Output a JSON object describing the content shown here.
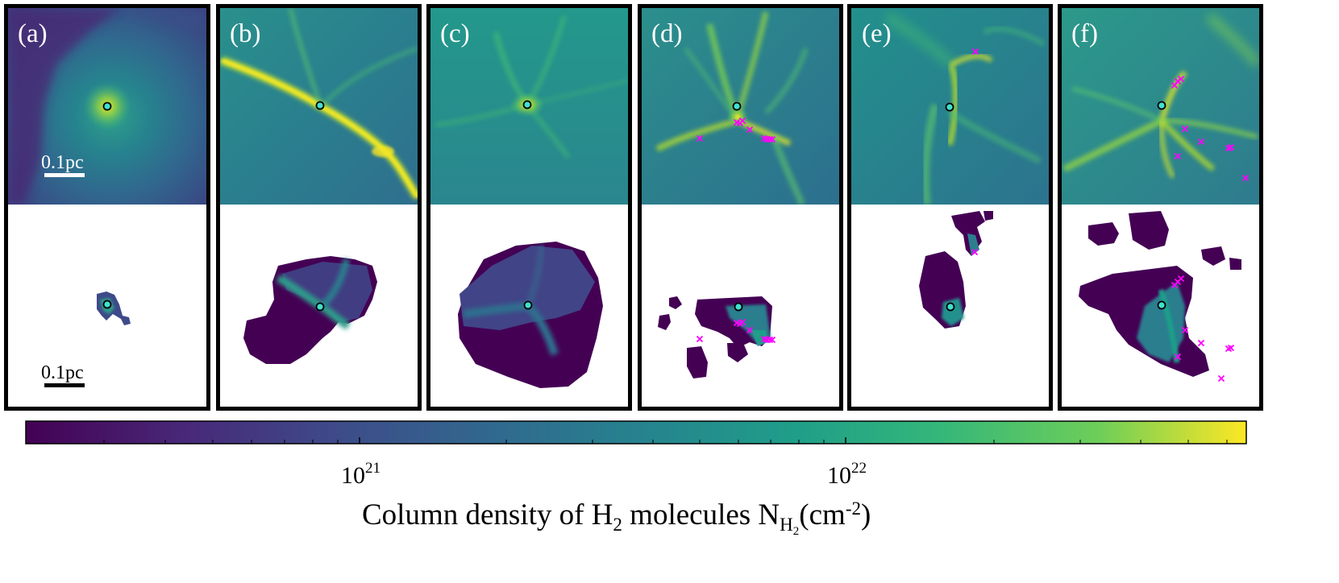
{
  "panels": [
    {
      "label": "(a)",
      "top_scale": "0.1pc",
      "bottom_scale": "0.1pc"
    },
    {
      "label": "(b)"
    },
    {
      "label": "(c)"
    },
    {
      "label": "(d)"
    },
    {
      "label": "(e)"
    },
    {
      "label": "(f)"
    }
  ],
  "colorbar": {
    "colormap": "viridis",
    "tick_base": "10",
    "ticks": [
      {
        "exponent": "21"
      },
      {
        "exponent": "22"
      }
    ],
    "label": {
      "prefix": "Column density of H",
      "sub1": "2",
      "middle": " molecules N",
      "sub2": "H",
      "sub3": "2",
      "open": "(cm",
      "sup": "-2",
      "close": ")"
    }
  },
  "colors": {
    "source_marker_fill": "#40e0d0",
    "sink_marker": "#ff00ff",
    "panel_frame": "#000000",
    "cmap_low": "#440154",
    "cmap_mid": "#21918c",
    "cmap_high": "#fde725"
  }
}
